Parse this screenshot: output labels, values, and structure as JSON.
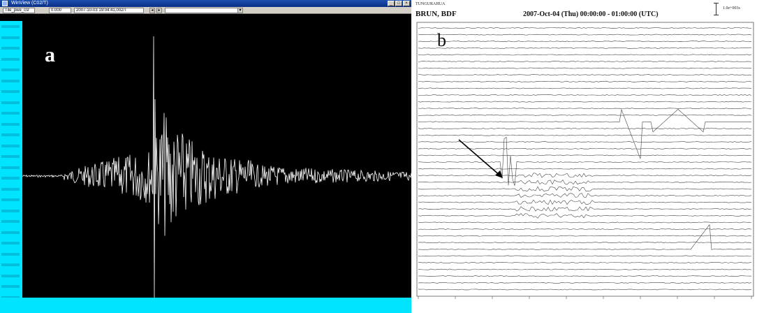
{
  "panel_a": {
    "label": "a",
    "window_title": "WinView (C02/T)",
    "toolbar": {
      "channel": "Tile_pwe_csr",
      "field_2": "0.000",
      "timestamp": "2007-10-03 19:04:41,002/T"
    },
    "window_buttons": [
      "_",
      "□",
      "×"
    ],
    "colors": {
      "waveform": "#ffffff",
      "background": "#000000",
      "axis": "#00e4ff",
      "titlebar": "#0a2f86"
    }
  },
  "panel_b": {
    "label": "b",
    "network": "TUNGURAHUA",
    "station": "BRUN, BDF",
    "date_range": "2007-Oct-04 (Thu) 00:00:00 - 01:00:00 (UTC)",
    "scale_label": "1.0e+003s",
    "arrow_direction": "pointing down-right toward event onset",
    "colors": {
      "traces": "#444444",
      "background": "#ffffff"
    }
  }
}
